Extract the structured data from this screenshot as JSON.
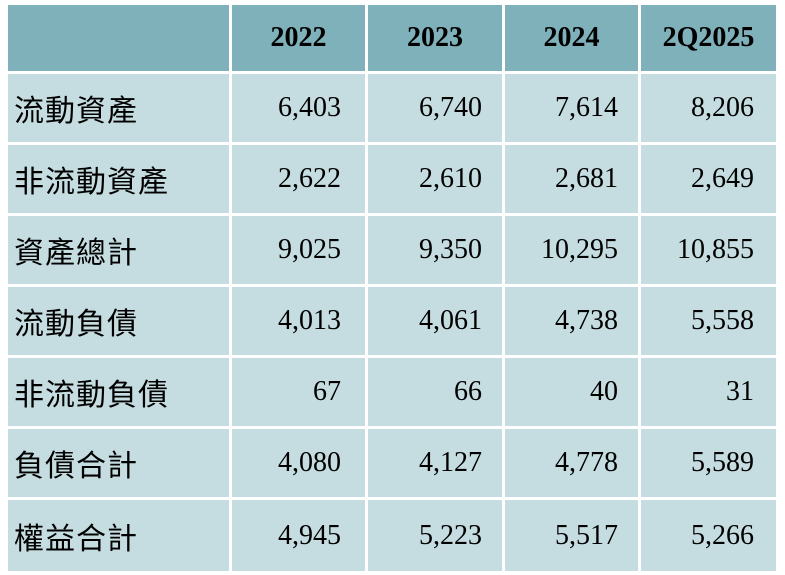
{
  "table": {
    "columns": [
      "2022",
      "2023",
      "2024",
      "2Q2025"
    ],
    "rows": [
      {
        "label": "流動資產",
        "values": [
          "6,403",
          "6,740",
          "7,614",
          "8,206"
        ]
      },
      {
        "label": "非流動資產",
        "values": [
          "2,622",
          "2,610",
          "2,681",
          "2,649"
        ]
      },
      {
        "label": "資產總計",
        "values": [
          "9,025",
          "9,350",
          "10,295",
          "10,855"
        ]
      },
      {
        "label": "流動負債",
        "values": [
          "4,013",
          "4,061",
          "4,738",
          "5,558"
        ]
      },
      {
        "label": "非流動負債",
        "values": [
          "67",
          "66",
          "40",
          "31"
        ]
      },
      {
        "label": "負債合計",
        "values": [
          "4,080",
          "4,127",
          "4,778",
          "5,589"
        ]
      },
      {
        "label": "權益合計",
        "values": [
          "4,945",
          "5,223",
          "5,517",
          "5,266"
        ]
      }
    ]
  },
  "colors": {
    "header_bg": "#7fb1bb",
    "row_bg": "#c5dde1",
    "grid_lines": "#ffffff"
  }
}
